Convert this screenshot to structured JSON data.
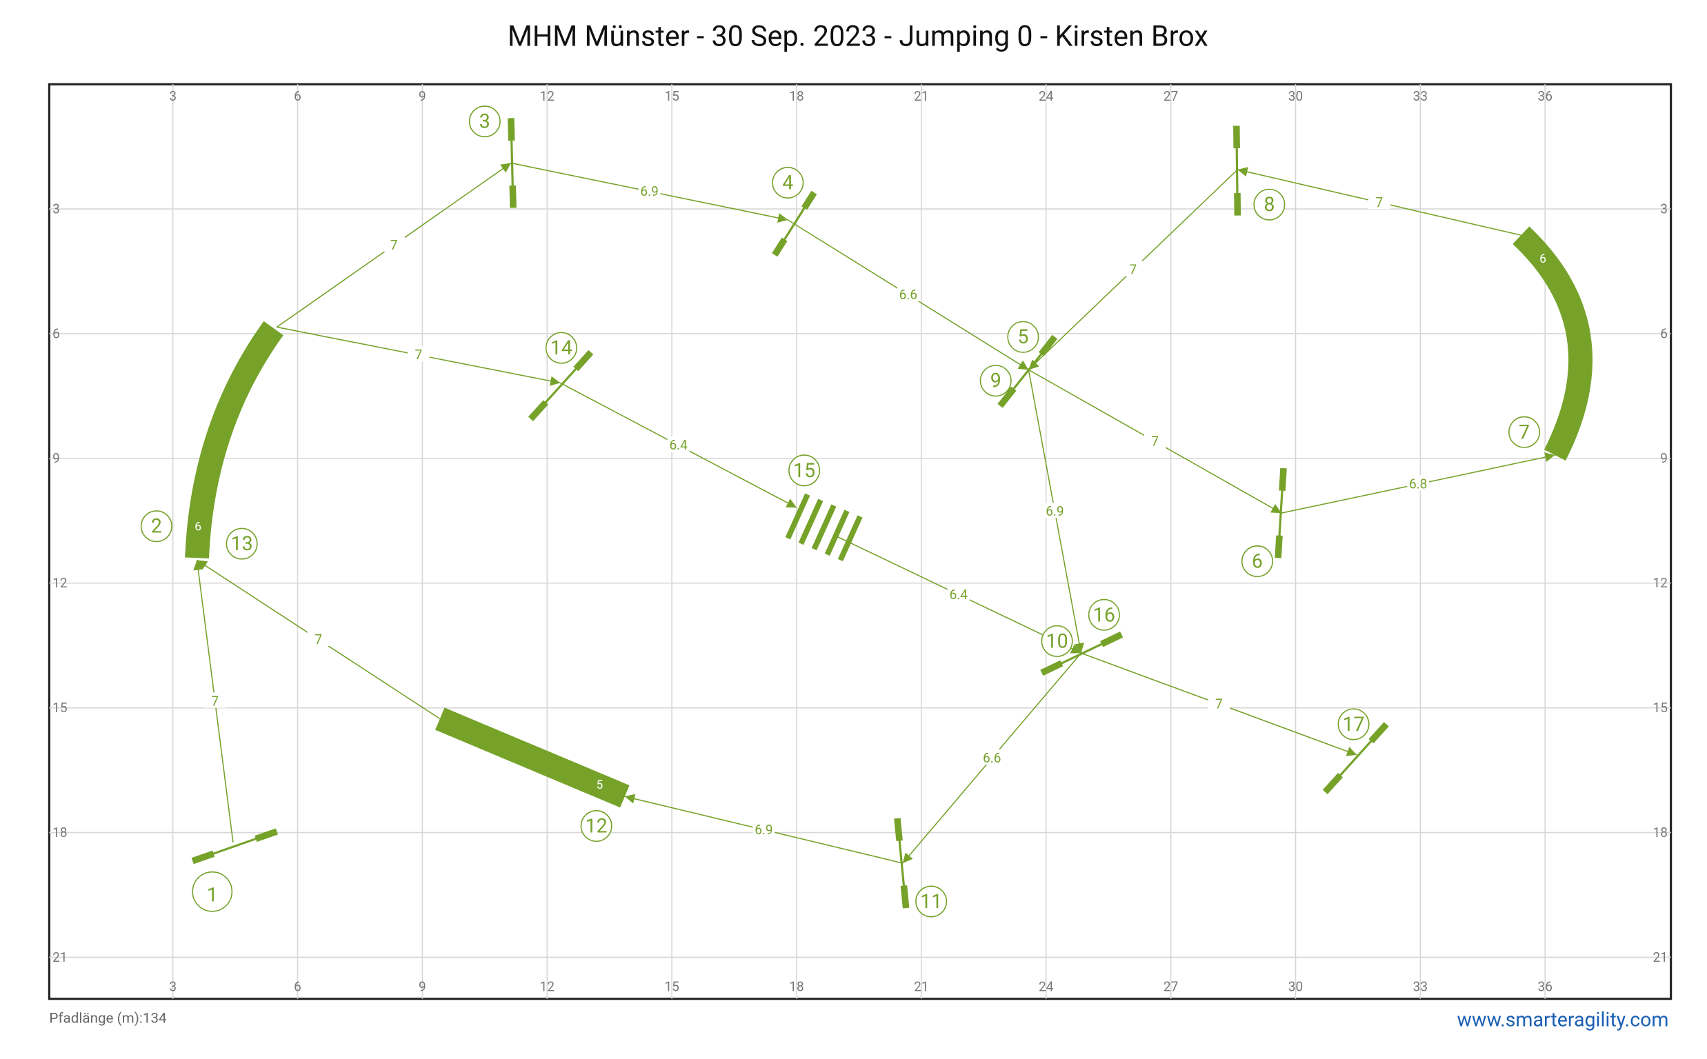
{
  "header": {
    "title": "MHM Münster - 30 Sep. 2023 - Jumping 0 - Kirsten Brox"
  },
  "course": {
    "xticks": [
      3,
      6,
      9,
      12,
      15,
      18,
      21,
      24,
      27,
      30,
      33,
      36
    ],
    "yticks": [
      3,
      6,
      9,
      12,
      15,
      18,
      21
    ],
    "numbers": [
      1,
      2,
      3,
      4,
      5,
      6,
      7,
      8,
      9,
      10,
      11,
      12,
      13,
      14,
      15,
      16,
      17
    ],
    "distances": [
      7,
      7,
      6.9,
      6.6,
      7,
      6.8,
      7,
      7,
      6.9,
      6.6,
      6.9,
      7,
      7,
      6.4,
      6.4,
      7
    ],
    "tunnel_lengths": [
      6,
      6,
      5
    ]
  },
  "footer": {
    "path_length": "Pfadlänge (m):134",
    "site": "www.smarteragility.com"
  }
}
